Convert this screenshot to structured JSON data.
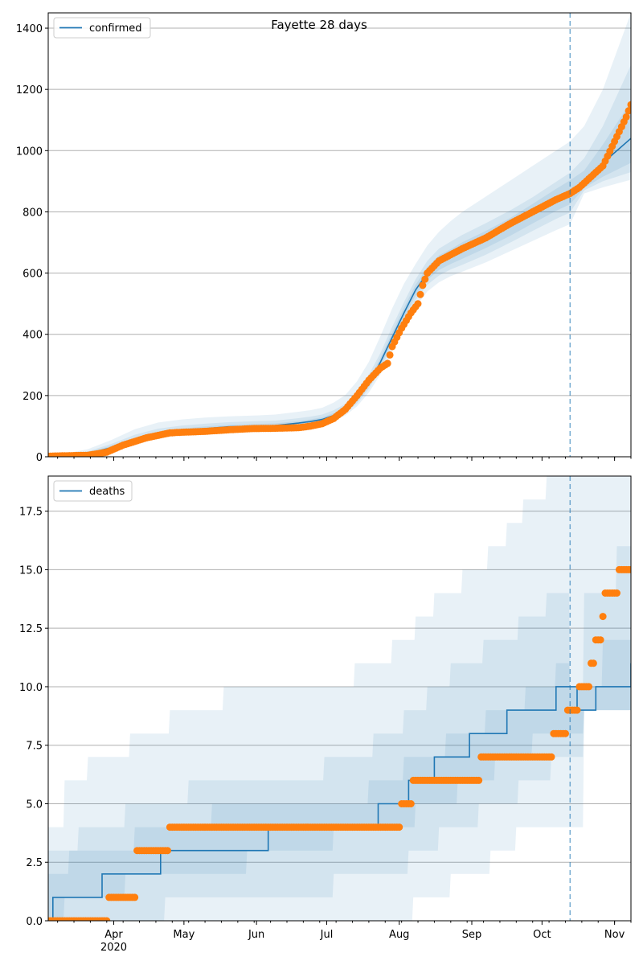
{
  "title": "Fayette 28 days",
  "colors": {
    "line": "#1f77b4",
    "band": "#1f77b4",
    "observed": "#ff7f0e",
    "grid": "#b0b0b0",
    "vline": "#1f77b4"
  },
  "x_axis": {
    "month_labels": [
      "Apr",
      "May",
      "Jun",
      "Jul",
      "Aug",
      "Sep",
      "Oct",
      "Nov"
    ],
    "month_days": [
      31,
      61,
      92,
      122,
      153,
      184,
      214,
      245
    ],
    "year_label": "2020",
    "range_days": [
      3,
      252
    ],
    "forecast_day": 226
  },
  "chart_data": [
    {
      "type": "line",
      "legend": "confirmed",
      "legend_position": "top-left",
      "ylim": [
        0,
        1450
      ],
      "yticks": [
        0,
        200,
        400,
        600,
        800,
        1000,
        1200,
        1400
      ],
      "grid": "y",
      "model": {
        "x": [
          3,
          10,
          20,
          30,
          40,
          50,
          60,
          70,
          80,
          92,
          100,
          110,
          115,
          120,
          125,
          130,
          135,
          140,
          145,
          150,
          155,
          160,
          165,
          170,
          175,
          180,
          190,
          200,
          210,
          220,
          226,
          232,
          240,
          252
        ],
        "y": [
          0,
          2,
          10,
          30,
          55,
          75,
          85,
          92,
          98,
          100,
          102,
          110,
          115,
          122,
          135,
          155,
          190,
          240,
          310,
          390,
          470,
          545,
          600,
          635,
          655,
          675,
          710,
          750,
          795,
          840,
          865,
          900,
          960,
          1040
        ],
        "bands": [
          {
            "lower": [
              0,
              0,
              4,
              18,
              40,
              60,
              72,
              80,
              85,
              88,
              90,
              97,
              101,
              107,
              118,
              135,
              165,
              210,
              270,
              345,
              420,
              490,
              540,
              570,
              590,
              605,
              635,
              670,
              705,
              740,
              760,
              860,
              880,
              905
            ],
            "upper": [
              4,
              10,
              25,
              55,
              90,
              112,
              122,
              128,
              132,
              135,
              138,
              147,
              152,
              160,
              177,
              202,
              247,
              310,
              395,
              485,
              565,
              630,
              690,
              735,
              770,
              800,
              850,
              900,
              950,
              1000,
              1030,
              1080,
              1200,
              1450
            ]
          },
          {
            "lower": [
              0,
              1,
              6,
              22,
              45,
              65,
              76,
              84,
              89,
              92,
              94,
              101,
              106,
              112,
              124,
              142,
              174,
              222,
              285,
              362,
              440,
              512,
              562,
              592,
              612,
              627,
              660,
              698,
              738,
              777,
              798,
              870,
              900,
              930
            ],
            "upper": [
              2,
              6,
              18,
              42,
              72,
              92,
              102,
              108,
              113,
              116,
              118,
              126,
              131,
              138,
              152,
              173,
              212,
              268,
              340,
              425,
              505,
              580,
              640,
              680,
              703,
              725,
              763,
              803,
              848,
              898,
              928,
              975,
              1080,
              1280
            ]
          },
          {
            "lower": [
              0,
              1,
              7,
              25,
              49,
              69,
              79,
              87,
              92,
              95,
              97,
              104,
              109,
              116,
              128,
              147,
              181,
              230,
              296,
              374,
              453,
              527,
              578,
              610,
              630,
              647,
              682,
              720,
              762,
              803,
              825,
              878,
              915,
              960
            ],
            "upper": [
              1,
              4,
              14,
              36,
              62,
              82,
              92,
              99,
              104,
              107,
              109,
              117,
              122,
              129,
              142,
              163,
              200,
              252,
              324,
              407,
              487,
              562,
              620,
              658,
              678,
              701,
              738,
              778,
              826,
              875,
              903,
              935,
              1020,
              1160
            ]
          }
        ]
      },
      "observed": {
        "anchors_x": [
          3,
          20,
          28,
          35,
          45,
          55,
          60,
          70,
          80,
          90,
          100,
          110,
          115,
          120,
          125,
          130,
          135,
          140,
          145,
          148,
          150,
          154,
          158,
          161,
          163,
          165,
          170,
          175,
          180,
          190,
          200,
          210,
          220,
          226,
          230,
          240,
          250,
          252
        ],
        "anchors_y": [
          2,
          5,
          15,
          38,
          62,
          78,
          80,
          83,
          88,
          92,
          93,
          95,
          100,
          108,
          125,
          155,
          200,
          250,
          290,
          305,
          360,
          420,
          470,
          500,
          560,
          600,
          640,
          660,
          680,
          715,
          760,
          800,
          840,
          860,
          880,
          950,
          1110,
          1150
        ]
      }
    },
    {
      "type": "line",
      "legend": "deaths",
      "legend_position": "top-left",
      "ylim": [
        0,
        19
      ],
      "yticks": [
        0,
        2.5,
        5,
        7.5,
        10,
        12.5,
        15,
        17.5
      ],
      "ytick_labels": [
        "0.0",
        "2.5",
        "5.0",
        "7.5",
        "10.0",
        "12.5",
        "15.0",
        "17.5"
      ],
      "grid": "y",
      "model": {
        "steps": [
          [
            3,
            0
          ],
          [
            5,
            1
          ],
          [
            26,
            2
          ],
          [
            51,
            3
          ],
          [
            97,
            4
          ],
          [
            144,
            5
          ],
          [
            157,
            6
          ],
          [
            168,
            7
          ],
          [
            183,
            8
          ],
          [
            199,
            9
          ],
          [
            220,
            10
          ],
          [
            229,
            9
          ],
          [
            237,
            10
          ],
          [
            252,
            11
          ]
        ],
        "bands": [
          {
            "steps": [
              [
                3,
                0
              ],
              [
                53,
                0
              ],
              [
                135,
                0
              ],
              [
                159,
                1
              ],
              [
                175,
                2
              ],
              [
                192,
                3
              ],
              [
                203,
                4
              ],
              [
                214,
                4
              ],
              [
                226,
                4
              ],
              [
                232,
                9
              ],
              [
                252,
                9
              ]
            ],
            "upper_steps": [
              [
                3,
                4
              ],
              [
                10,
                6
              ],
              [
                20,
                7
              ],
              [
                38,
                8
              ],
              [
                55,
                9
              ],
              [
                78,
                10
              ],
              [
                134,
                11
              ],
              [
                150,
                12
              ],
              [
                160,
                13
              ],
              [
                168,
                14
              ],
              [
                180,
                15
              ],
              [
                191,
                16
              ],
              [
                199,
                17
              ],
              [
                206,
                18
              ],
              [
                216,
                19
              ],
              [
                252,
                19
              ]
            ]
          },
          {
            "steps": [
              [
                3,
                0
              ],
              [
                20,
                0
              ],
              [
                53,
                1
              ],
              [
                125,
                2
              ],
              [
                157,
                3
              ],
              [
                170,
                4
              ],
              [
                187,
                5
              ],
              [
                204,
                6
              ],
              [
                218,
                7
              ],
              [
                232,
                9
              ],
              [
                252,
                9
              ]
            ],
            "upper_steps": [
              [
                3,
                3
              ],
              [
                16,
                4
              ],
              [
                36,
                5
              ],
              [
                63,
                6
              ],
              [
                121,
                7
              ],
              [
                142,
                8
              ],
              [
                155,
                9
              ],
              [
                165,
                10
              ],
              [
                175,
                11
              ],
              [
                189,
                12
              ],
              [
                204,
                13
              ],
              [
                216,
                14
              ],
              [
                226,
                10
              ],
              [
                232,
                14
              ],
              [
                246,
                16
              ],
              [
                252,
                16
              ]
            ]
          },
          {
            "steps": [
              [
                3,
                0
              ],
              [
                10,
                1
              ],
              [
                36,
                2
              ],
              [
                88,
                3
              ],
              [
                125,
                4
              ],
              [
                160,
                5
              ],
              [
                178,
                6
              ],
              [
                194,
                7
              ],
              [
                210,
                8
              ],
              [
                226,
                8
              ],
              [
                232,
                9
              ],
              [
                252,
                9
              ]
            ],
            "upper_steps": [
              [
                3,
                2
              ],
              [
                12,
                3
              ],
              [
                40,
                4
              ],
              [
                73,
                5
              ],
              [
                121,
                5
              ],
              [
                140,
                6
              ],
              [
                155,
                7
              ],
              [
                173,
                8
              ],
              [
                190,
                9
              ],
              [
                207,
                10
              ],
              [
                220,
                11
              ],
              [
                226,
                10
              ],
              [
                240,
                12
              ],
              [
                252,
                12
              ]
            ]
          }
        ]
      },
      "observed": {
        "segments": [
          [
            3,
            28,
            0
          ],
          [
            29,
            40,
            1
          ],
          [
            41,
            54,
            3
          ],
          [
            55,
            153,
            4
          ],
          [
            154,
            158,
            5
          ],
          [
            159,
            187,
            6
          ],
          [
            188,
            218,
            7
          ],
          [
            219,
            224,
            8
          ],
          [
            225,
            229,
            9
          ],
          [
            230,
            234,
            10
          ],
          [
            235,
            236,
            11
          ],
          [
            237,
            239,
            12
          ],
          [
            240,
            240,
            13
          ],
          [
            241,
            246,
            14
          ],
          [
            247,
            252,
            15
          ]
        ]
      }
    }
  ]
}
